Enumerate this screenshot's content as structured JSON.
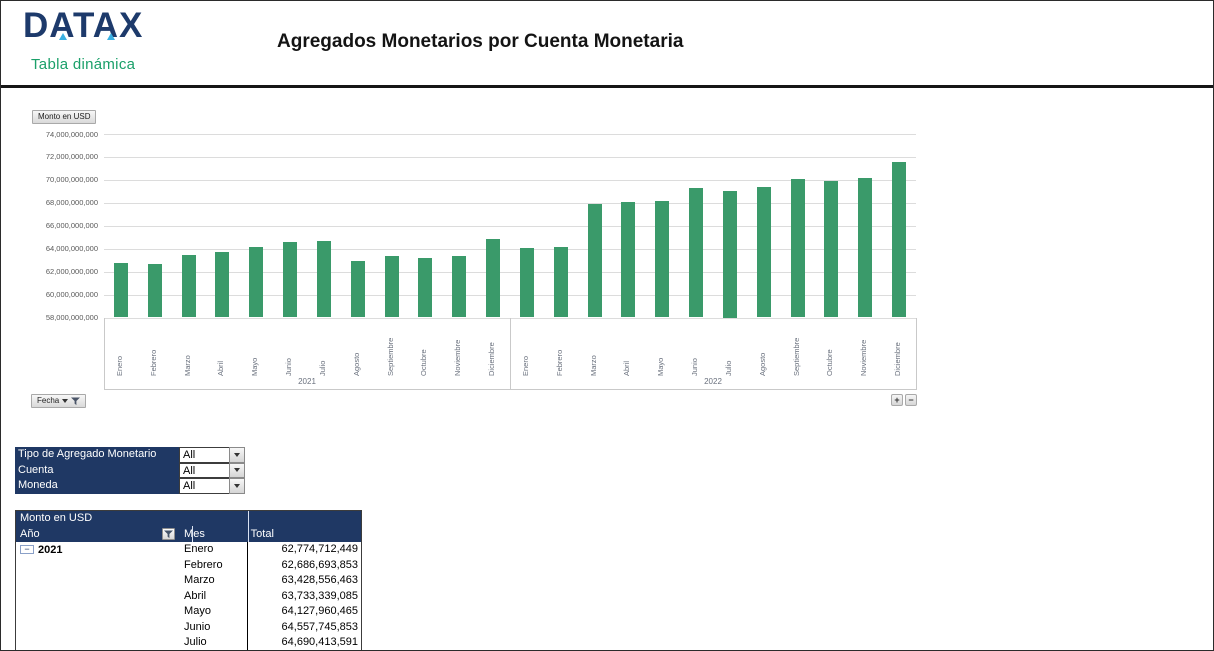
{
  "header": {
    "logo_text": "DATAX",
    "logo_subtitle": "Tabla dinámica",
    "title": "Agregados Monetarios por Cuenta Monetaria"
  },
  "chart": {
    "value_field": "Monto en USD",
    "axis_field": "Fecha",
    "zoom_in": "+",
    "zoom_out": "−"
  },
  "chart_data": {
    "type": "bar",
    "title": "Monto en USD",
    "ylim": [
      58000000000,
      74000000000
    ],
    "ytick_step": 2000000000,
    "ytick_labels": [
      "74,000,000,000",
      "72,000,000,000",
      "70,000,000,000",
      "68,000,000,000",
      "66,000,000,000",
      "64,000,000,000",
      "62,000,000,000",
      "60,000,000,000",
      "58,000,000,000"
    ],
    "grid": true,
    "legend": false,
    "bar_color": "#3A9A6A",
    "groups": [
      {
        "year": "2021",
        "months": [
          "Enero",
          "Febrero",
          "Marzo",
          "Abril",
          "Mayo",
          "Junio",
          "Julio",
          "Agosto",
          "Septiembre",
          "Octubre",
          "Noviembre",
          "Diciembre"
        ],
        "values": [
          62774712449,
          62686693853,
          63428556463,
          63733339085,
          64127960465,
          64557745853,
          64690413591,
          62890000000,
          63330000000,
          63210000000,
          63330000000,
          64810000000
        ]
      },
      {
        "year": "2022",
        "months": [
          "Enero",
          "Febrero",
          "Marzo",
          "Abril",
          "Mayo",
          "Junio",
          "Julio",
          "Agosto",
          "Septiembre",
          "Octubre",
          "Noviembre",
          "Diciembre"
        ],
        "values": [
          64050000000,
          64150000000,
          67900000000,
          68050000000,
          68150000000,
          69250000000,
          69000000000,
          69400000000,
          70100000000,
          69900000000,
          70200000000,
          71600000000
        ]
      }
    ]
  },
  "filters": {
    "rows": [
      {
        "label": "Tipo de Agregado Monetario",
        "value": "All"
      },
      {
        "label": "Cuenta",
        "value": "All"
      },
      {
        "label": "Moneda",
        "value": "All"
      }
    ]
  },
  "pivot_table": {
    "title": "Monto en USD",
    "columns": [
      "Año",
      "Mes",
      "Total"
    ],
    "year": "2021",
    "collapse_glyph": "−",
    "rows": [
      {
        "mes": "Enero",
        "total": "62,774,712,449"
      },
      {
        "mes": "Febrero",
        "total": "62,686,693,853"
      },
      {
        "mes": "Marzo",
        "total": "63,428,556,463"
      },
      {
        "mes": "Abril",
        "total": "63,733,339,085"
      },
      {
        "mes": "Mayo",
        "total": "64,127,960,465"
      },
      {
        "mes": "Junio",
        "total": "64,557,745,853"
      },
      {
        "mes": "Julio",
        "total": "64,690,413,591"
      }
    ]
  },
  "colors": {
    "navy": "#1F3864",
    "bar_green": "#3A9A6A",
    "logo_navy": "#1D3A6B",
    "logo_cyan": "#3AB0E2",
    "subtitle_green": "#1BA06A"
  }
}
